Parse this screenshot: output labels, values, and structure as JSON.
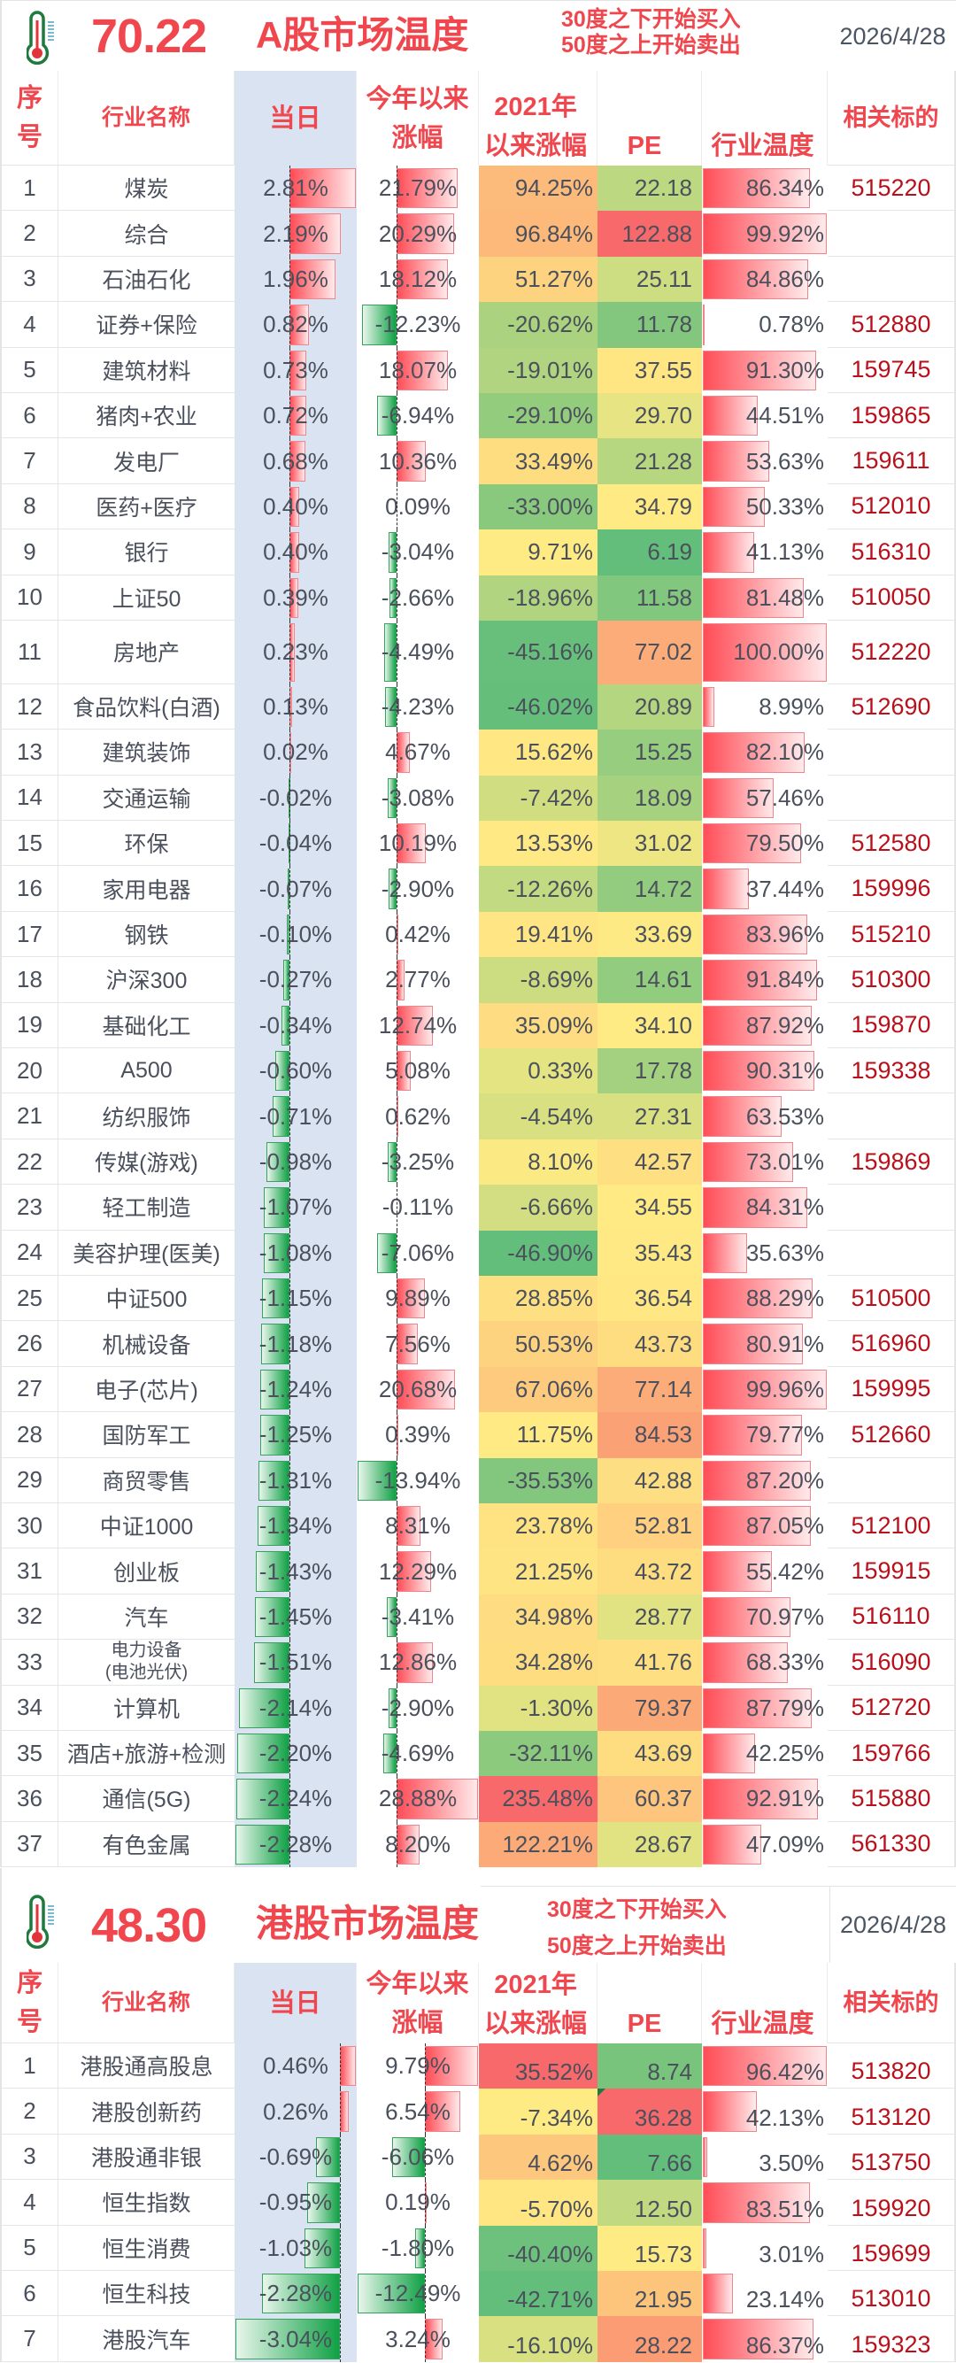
{
  "colors": {
    "accent_red": "#f0474f",
    "ticker_red": "#b8111c",
    "body_text": "#4a505c",
    "date_text": "#4a5563",
    "daily_column_bg": "#dae3f1",
    "bar_positive_start": "#ff4d57",
    "bar_positive_end": "#ffeaeb",
    "bar_negative_start": "#10a145",
    "bar_negative_end": "#e8f6ec",
    "scale_low": "#63be7b",
    "scale_mid": "#ffeb84",
    "scale_high": "#f8696b",
    "thermo_outline": "#1f7a3e",
    "thermo_mercury": "#e0353b",
    "thermo_ticks": "#58a7c4"
  },
  "icons": {
    "market_temperature": "thermometer-icon"
  },
  "chart_data": [
    {
      "type": "table",
      "title": "A股市场温度",
      "market_temperature": "70.22",
      "annotation": [
        "30度之下开始买入",
        "50度之上开始卖出"
      ],
      "date": "2026/4/28",
      "columns": [
        "序号",
        "行业名称",
        "当日",
        "今年以来涨幅",
        "2021年以来涨幅",
        "PE",
        "行业温度",
        "相关标的"
      ],
      "header_lines": [
        [
          "序",
          "号"
        ],
        [
          "行业名称"
        ],
        [
          "当日"
        ],
        [
          "今年以来",
          "涨幅"
        ],
        [
          "2021年",
          "以来涨幅"
        ],
        [
          "PE"
        ],
        [
          "行业温度"
        ],
        [
          "相关标的"
        ]
      ],
      "rows": [
        [
          "1",
          "煤炭",
          "2.81%",
          "21.79%",
          "94.25%",
          "22.18",
          "86.34%",
          "515220"
        ],
        [
          "2",
          "综合",
          "2.19%",
          "20.29%",
          "96.84%",
          "122.88",
          "99.92%",
          ""
        ],
        [
          "3",
          "石油石化",
          "1.96%",
          "18.12%",
          "51.27%",
          "25.11",
          "84.86%",
          ""
        ],
        [
          "4",
          "证券+保险",
          "0.82%",
          "-12.23%",
          "-20.62%",
          "11.78",
          "0.78%",
          "512880"
        ],
        [
          "5",
          "建筑材料",
          "0.73%",
          "18.07%",
          "-19.01%",
          "37.55",
          "91.30%",
          "159745"
        ],
        [
          "6",
          "猪肉+农业",
          "0.72%",
          "-6.94%",
          "-29.10%",
          "29.70",
          "44.51%",
          "159865"
        ],
        [
          "7",
          "发电厂",
          "0.68%",
          "10.36%",
          "33.49%",
          "21.28",
          "53.63%",
          "159611"
        ],
        [
          "8",
          "医药+医疗",
          "0.40%",
          "0.09%",
          "-33.00%",
          "34.79",
          "50.33%",
          "512010"
        ],
        [
          "9",
          "银行",
          "0.40%",
          "-3.04%",
          "9.71%",
          "6.19",
          "41.13%",
          "516310"
        ],
        [
          "10",
          "上证50",
          "0.39%",
          "-2.66%",
          "-18.96%",
          "11.58",
          "81.48%",
          "510050"
        ],
        [
          "11",
          "房地产",
          "0.23%",
          "-4.49%",
          "-45.16%",
          "77.02",
          "100.00%",
          "512220"
        ],
        [
          "12",
          "食品饮料(白酒)",
          "0.13%",
          "-4.23%",
          "-46.02%",
          "20.89",
          "8.99%",
          "512690"
        ],
        [
          "13",
          "建筑装饰",
          "0.02%",
          "4.67%",
          "15.62%",
          "15.25",
          "82.10%",
          ""
        ],
        [
          "14",
          "交通运输",
          "-0.02%",
          "-3.08%",
          "-7.42%",
          "18.09",
          "57.46%",
          ""
        ],
        [
          "15",
          "环保",
          "-0.04%",
          "10.19%",
          "13.53%",
          "31.02",
          "79.50%",
          "512580"
        ],
        [
          "16",
          "家用电器",
          "-0.07%",
          "-2.90%",
          "-12.26%",
          "14.72",
          "37.44%",
          "159996"
        ],
        [
          "17",
          "钢铁",
          "-0.10%",
          "0.42%",
          "19.41%",
          "33.69",
          "83.96%",
          "515210"
        ],
        [
          "18",
          "沪深300",
          "-0.27%",
          "2.77%",
          "-8.69%",
          "14.61",
          "91.84%",
          "510300"
        ],
        [
          "19",
          "基础化工",
          "-0.34%",
          "12.74%",
          "35.09%",
          "34.10",
          "87.92%",
          "159870"
        ],
        [
          "20",
          "A500",
          "-0.60%",
          "5.08%",
          "0.33%",
          "17.78",
          "90.31%",
          "159338"
        ],
        [
          "21",
          "纺织服饰",
          "-0.71%",
          "0.62%",
          "-4.54%",
          "27.31",
          "63.53%",
          ""
        ],
        [
          "22",
          "传媒(游戏)",
          "-0.98%",
          "-3.25%",
          "8.10%",
          "42.57",
          "73.01%",
          "159869"
        ],
        [
          "23",
          "轻工制造",
          "-1.07%",
          "-0.11%",
          "-6.66%",
          "34.55",
          "84.31%",
          ""
        ],
        [
          "24",
          "美容护理(医美)",
          "-1.08%",
          "-7.06%",
          "-46.90%",
          "35.43",
          "35.63%",
          ""
        ],
        [
          "25",
          "中证500",
          "-1.15%",
          "9.89%",
          "28.85%",
          "36.54",
          "88.29%",
          "510500"
        ],
        [
          "26",
          "机械设备",
          "-1.18%",
          "7.56%",
          "50.53%",
          "43.73",
          "80.91%",
          "516960"
        ],
        [
          "27",
          "电子(芯片)",
          "-1.24%",
          "20.68%",
          "67.06%",
          "77.14",
          "99.96%",
          "159995"
        ],
        [
          "28",
          "国防军工",
          "-1.25%",
          "0.39%",
          "11.75%",
          "84.53",
          "79.77%",
          "512660"
        ],
        [
          "29",
          "商贸零售",
          "-1.31%",
          "-13.94%",
          "-35.53%",
          "42.88",
          "87.20%",
          ""
        ],
        [
          "30",
          "中证1000",
          "-1.34%",
          "8.31%",
          "23.78%",
          "52.81",
          "87.05%",
          "512100"
        ],
        [
          "31",
          "创业板",
          "-1.43%",
          "12.29%",
          "21.25%",
          "43.72",
          "55.42%",
          "159915"
        ],
        [
          "32",
          "汽车",
          "-1.45%",
          "-3.41%",
          "34.98%",
          "28.77",
          "70.97%",
          "516110"
        ],
        [
          "33",
          "电力设备\n(电池光伏)",
          "-1.51%",
          "12.86%",
          "34.28%",
          "41.76",
          "68.33%",
          "516090"
        ],
        [
          "34",
          "计算机",
          "-2.14%",
          "-2.90%",
          "-1.30%",
          "79.37",
          "87.79%",
          "512720"
        ],
        [
          "35",
          "酒店+旅游+检测",
          "-2.20%",
          "-4.69%",
          "-32.11%",
          "43.69",
          "42.25%",
          "159766"
        ],
        [
          "36",
          "通信(5G)",
          "-2.24%",
          "28.88%",
          "235.48%",
          "60.37",
          "92.91%",
          "515880"
        ],
        [
          "37",
          "有色金属",
          "-2.28%",
          "8.20%",
          "122.21%",
          "28.67",
          "47.09%",
          "561330"
        ]
      ]
    },
    {
      "type": "table",
      "title": "港股市场温度",
      "market_temperature": "48.30",
      "annotation": [
        "30度之下开始买入",
        "50度之上开始卖出"
      ],
      "date": "2026/4/28",
      "columns": [
        "序号",
        "行业名称",
        "当日",
        "今年以来涨幅",
        "2021年以来涨幅",
        "PE",
        "行业温度",
        "相关标的"
      ],
      "header_lines": [
        [
          "序",
          "号"
        ],
        [
          "行业名称"
        ],
        [
          "当日"
        ],
        [
          "今年以来",
          "涨幅"
        ],
        [
          "2021年",
          "以来涨幅"
        ],
        [
          "PE"
        ],
        [
          "行业温度"
        ],
        [
          "相关标的"
        ]
      ],
      "rows": [
        [
          "1",
          "港股通高股息",
          "0.46%",
          "9.79%",
          "35.52%",
          "8.74",
          "96.42%",
          "513820"
        ],
        [
          "2",
          "港股创新药",
          "0.26%",
          "6.54%",
          "-7.34%",
          "36.28",
          "42.13%",
          "513120"
        ],
        [
          "3",
          "港股通非银",
          "-0.69%",
          "-6.06%",
          "4.62%",
          "7.66",
          "3.50%",
          "513750"
        ],
        [
          "4",
          "恒生指数",
          "-0.95%",
          "0.19%",
          "-5.70%",
          "12.50",
          "83.51%",
          "159920"
        ],
        [
          "5",
          "恒生消费",
          "-1.03%",
          "-1.80%",
          "-40.40%",
          "15.73",
          "3.01%",
          "159699"
        ],
        [
          "6",
          "恒生科技",
          "-2.28%",
          "-12.49%",
          "-42.71%",
          "21.95",
          "23.14%",
          "513010"
        ],
        [
          "7",
          "港股汽车",
          "-3.04%",
          "3.24%",
          "-16.10%",
          "28.22",
          "86.37%",
          "159323"
        ]
      ]
    }
  ]
}
